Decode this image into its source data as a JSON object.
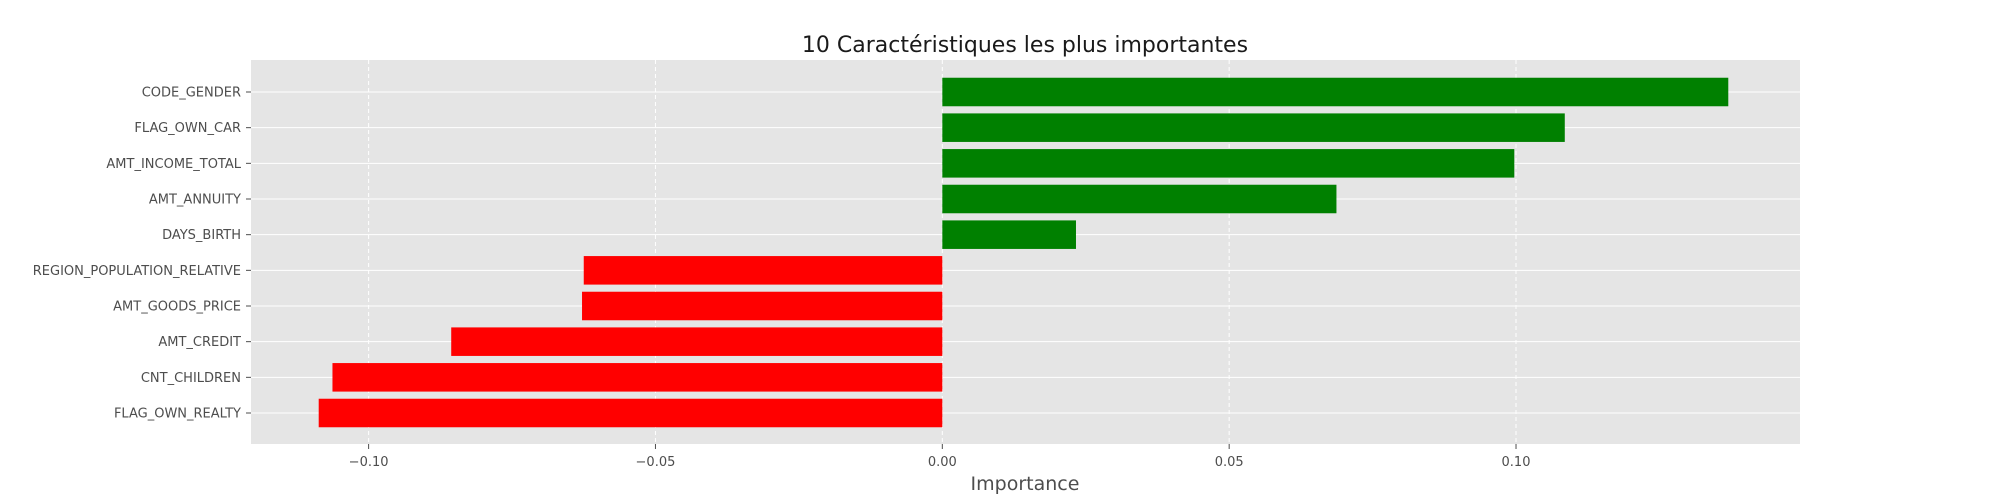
{
  "chart_data": {
    "type": "bar",
    "orientation": "horizontal",
    "title": "10 Caractéristiques les plus importantes",
    "xlabel": "Importance",
    "ylabel": "",
    "categories": [
      "CODE_GENDER",
      "FLAG_OWN_CAR",
      "AMT_INCOME_TOTAL",
      "AMT_ANNUITY",
      "DAYS_BIRTH",
      "REGION_POPULATION_RELATIVE",
      "AMT_GOODS_PRICE",
      "AMT_CREDIT",
      "CNT_CHILDREN",
      "FLAG_OWN_REALTY"
    ],
    "values": [
      0.137,
      0.1085,
      0.0997,
      0.0687,
      0.0233,
      -0.0625,
      -0.0628,
      -0.0856,
      -0.1063,
      -0.1087
    ],
    "xlim": [
      -0.1205,
      0.1495
    ],
    "xticks": [
      -0.1,
      -0.05,
      0.0,
      0.05,
      0.1
    ],
    "xtick_labels": [
      "−0.10",
      "−0.05",
      "0.00",
      "0.05",
      "0.10"
    ],
    "grid": true,
    "colors": {
      "positive": "#008000",
      "negative": "#ff0000",
      "plot_background": "#e5e5e5",
      "grid": "#ffffff"
    }
  }
}
